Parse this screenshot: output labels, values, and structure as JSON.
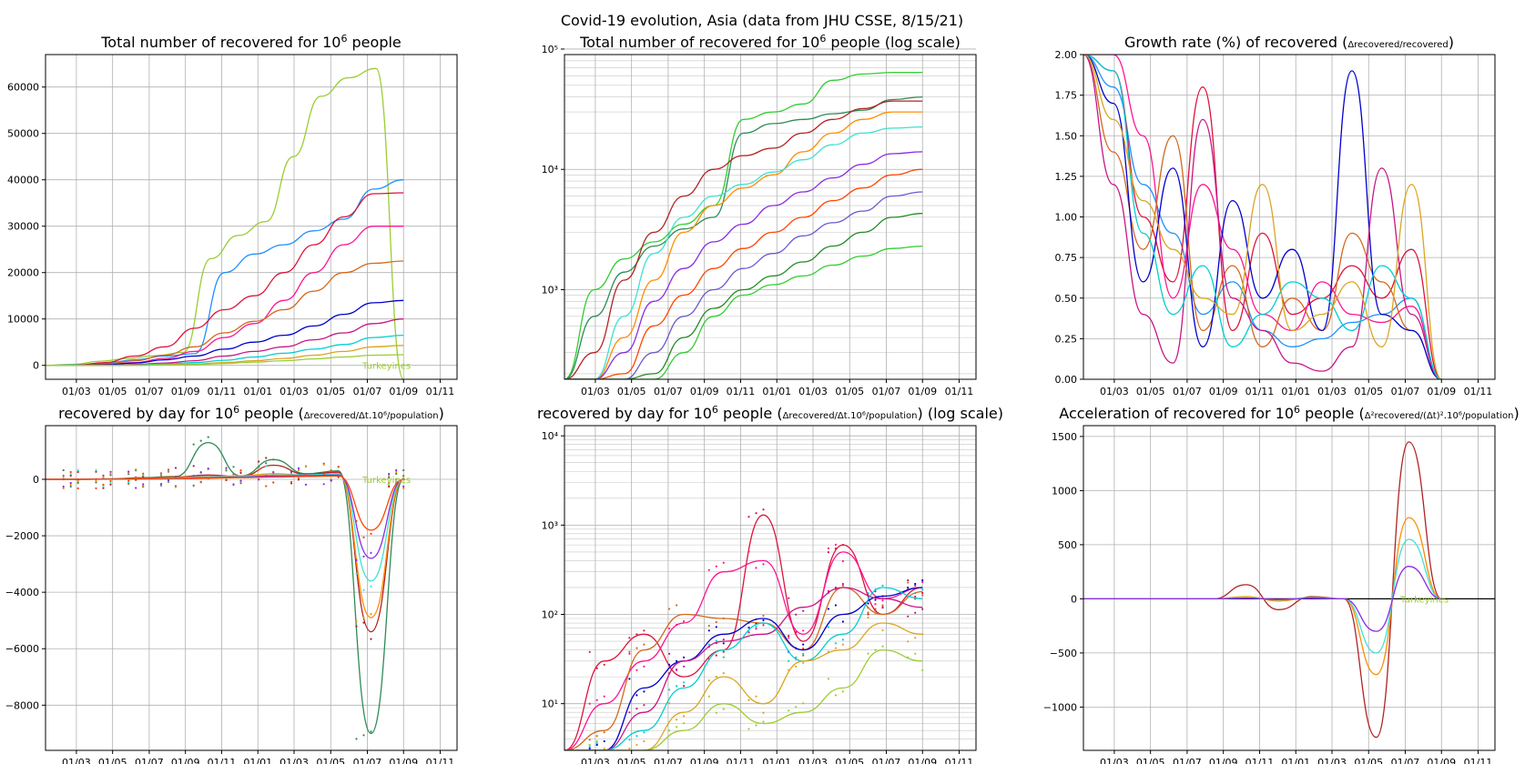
{
  "suptitle": "Covid-19 evolution, Asia (data from JHU CSSE, 8/15/21)",
  "colors": [
    "#9acd32",
    "#32cd32",
    "#1e90ff",
    "#2e8b57",
    "#dc143c",
    "#b22222",
    "#ff1493",
    "#ff8c00",
    "#d2691e",
    "#40e0d0",
    "#0000cd",
    "#8a2be2",
    "#c71585",
    "#ff4500",
    "#00ced1",
    "#6a5acd",
    "#daa520",
    "#228b22"
  ],
  "end_label": "Turkeyines",
  "chart_data": [
    {
      "type": "line",
      "id": "total",
      "title": "Total number of recovered for 10",
      "title_sup": "6",
      "title_after": " people",
      "yscale": "linear",
      "ylim": [
        -3000,
        67000
      ],
      "yticks": [
        0,
        10000,
        20000,
        30000,
        40000,
        50000,
        60000
      ],
      "ytick_labels": [
        "0",
        "10000",
        "20000",
        "30000",
        "40000",
        "50000",
        "60000"
      ],
      "xticks": [
        "01/03",
        "01/05",
        "01/07",
        "01/09",
        "01/11",
        "01/01",
        "01/03",
        "01/05",
        "01/07",
        "01/09",
        "01/11"
      ],
      "annotation": "Turkeyines",
      "series": [
        {
          "values": [
            0,
            200,
            900,
            1500,
            2100,
            2800,
            23000,
            28000,
            31000,
            45000,
            58000,
            62000,
            64000,
            -3000
          ]
        },
        {
          "values": [
            0,
            100,
            500,
            1200,
            2000,
            2500,
            20000,
            24000,
            26000,
            29000,
            31500,
            38000,
            40000
          ]
        },
        {
          "values": [
            0,
            0,
            600,
            2000,
            4000,
            8000,
            12000,
            15000,
            20000,
            26000,
            32000,
            37000,
            37200
          ]
        },
        {
          "values": [
            0,
            0,
            200,
            600,
            1500,
            3000,
            6000,
            9000,
            14000,
            20000,
            26000,
            30000,
            30000
          ]
        },
        {
          "values": [
            0,
            0,
            300,
            1000,
            2200,
            4000,
            7000,
            9500,
            12000,
            16000,
            20000,
            22000,
            22500
          ]
        },
        {
          "values": [
            0,
            0,
            100,
            500,
            1200,
            2000,
            3500,
            5000,
            6500,
            8500,
            11000,
            13500,
            14000
          ]
        },
        {
          "values": [
            0,
            0,
            0,
            200,
            500,
            1000,
            2000,
            3000,
            4000,
            5500,
            7000,
            9000,
            10000
          ]
        },
        {
          "values": [
            0,
            0,
            0,
            100,
            300,
            600,
            1100,
            1800,
            2600,
            3500,
            4500,
            6000,
            6500
          ]
        },
        {
          "values": [
            0,
            0,
            0,
            50,
            150,
            300,
            600,
            1000,
            1500,
            2200,
            3000,
            4000,
            4300
          ]
        },
        {
          "values": [
            0,
            0,
            0,
            0,
            100,
            200,
            400,
            700,
            1000,
            1400,
            1800,
            2200,
            2300
          ]
        }
      ]
    },
    {
      "type": "line",
      "id": "total-log",
      "title": "Total number of recovered for 10",
      "title_sup": "6",
      "title_after": " people (log scale)",
      "yscale": "log",
      "ylim": [
        180,
        90000
      ],
      "yticks": [
        1000,
        10000,
        100000
      ],
      "ytick_labels": [
        "10³",
        "10⁴",
        "10⁵"
      ],
      "xticks": [
        "01/03",
        "01/05",
        "01/07",
        "01/09",
        "01/11",
        "01/01",
        "01/03",
        "01/05",
        "01/07",
        "01/09",
        "01/11"
      ],
      "series": [
        {
          "values": [
            180,
            1000,
            1800,
            2500,
            3500,
            5000,
            26000,
            30000,
            35000,
            55000,
            62000,
            64000,
            64000
          ]
        },
        {
          "values": [
            180,
            600,
            1400,
            2300,
            3200,
            4000,
            20000,
            24000,
            26000,
            29000,
            31000,
            38000,
            40000
          ]
        },
        {
          "values": [
            180,
            300,
            1200,
            3000,
            6000,
            10000,
            13000,
            15000,
            20000,
            26000,
            32000,
            37000,
            37000
          ]
        },
        {
          "values": [
            180,
            180,
            400,
            1200,
            3000,
            5000,
            7000,
            9000,
            14000,
            20000,
            26000,
            30000,
            30000
          ]
        },
        {
          "values": [
            180,
            180,
            600,
            2000,
            4000,
            6000,
            7500,
            9500,
            12000,
            16000,
            20000,
            22000,
            22500
          ]
        },
        {
          "values": [
            180,
            180,
            300,
            800,
            1500,
            2500,
            3500,
            5000,
            6500,
            8500,
            11000,
            13500,
            14000
          ]
        },
        {
          "values": [
            180,
            180,
            200,
            500,
            900,
            1500,
            2200,
            3000,
            4000,
            5500,
            7000,
            9000,
            10000
          ]
        },
        {
          "values": [
            180,
            180,
            180,
            300,
            600,
            1000,
            1500,
            2000,
            2800,
            3600,
            4500,
            6000,
            6500
          ]
        },
        {
          "values": [
            180,
            180,
            180,
            200,
            400,
            700,
            1000,
            1300,
            1700,
            2300,
            3000,
            4000,
            4300
          ]
        },
        {
          "values": [
            180,
            180,
            180,
            180,
            300,
            600,
            900,
            1100,
            1300,
            1600,
            1900,
            2200,
            2300
          ]
        }
      ]
    },
    {
      "type": "line",
      "id": "growth",
      "title": "Growth rate (%) of recovered (",
      "title_frac_num": "Δrecovered",
      "title_frac_den": "recovered",
      "title_after": ")",
      "yscale": "linear",
      "ylim": [
        0,
        2
      ],
      "yticks": [
        0,
        0.25,
        0.5,
        0.75,
        1.0,
        1.25,
        1.5,
        1.75,
        2.0
      ],
      "ytick_labels": [
        "0.00",
        "0.25",
        "0.50",
        "0.75",
        "1.00",
        "1.25",
        "1.50",
        "1.75",
        "2.00"
      ],
      "xticks": [
        "01/03",
        "01/05",
        "01/07",
        "01/09",
        "01/11",
        "01/01",
        "01/03",
        "01/05",
        "01/07",
        "01/09",
        "01/11"
      ],
      "series": [
        {
          "values": [
            2,
            1.8,
            1.2,
            0.9,
            0.4,
            0.6,
            0.3,
            0.2,
            0.25,
            0.35,
            0.4,
            0.5,
            0
          ]
        },
        {
          "values": [
            2,
            1.9,
            1.0,
            0.6,
            1.8,
            0.3,
            0.9,
            0.4,
            0.5,
            0.7,
            0.5,
            0.8,
            0
          ]
        },
        {
          "values": [
            2,
            2,
            1.5,
            0.5,
            1.2,
            0.8,
            0.4,
            0.3,
            0.6,
            0.4,
            0.35,
            0.45,
            0
          ]
        },
        {
          "values": [
            2,
            1.4,
            0.8,
            1.5,
            0.3,
            0.7,
            0.2,
            0.5,
            0.3,
            0.9,
            0.6,
            0.3,
            0
          ]
        },
        {
          "values": [
            2,
            1.7,
            0.6,
            1.3,
            0.2,
            1.1,
            0.5,
            0.8,
            0.3,
            1.9,
            0.4,
            0.3,
            0
          ]
        },
        {
          "values": [
            2,
            1.2,
            0.4,
            0.1,
            1.6,
            0.5,
            0.3,
            0.1,
            0.05,
            0.2,
            1.3,
            0.4,
            0
          ]
        },
        {
          "values": [
            2,
            1.9,
            0.9,
            0.4,
            0.7,
            0.2,
            0.4,
            0.6,
            0.5,
            0.3,
            0.7,
            0.5,
            0
          ]
        },
        {
          "values": [
            2,
            1.6,
            1.1,
            0.8,
            0.5,
            0.4,
            1.2,
            0.3,
            0.4,
            0.6,
            0.2,
            1.2,
            0
          ]
        }
      ]
    },
    {
      "type": "line",
      "id": "daily",
      "title": "recovered by day  for 10",
      "title_sup": "6",
      "title_after": " people (",
      "title_frac1_num": "Δrecovered",
      "title_frac1_den": "Δt",
      "title_frac2_num": "10⁶",
      "title_frac2_den": "population",
      "title_end": ")",
      "yscale": "linear",
      "ylim": [
        -9600,
        1900
      ],
      "yticks": [
        -8000,
        -6000,
        -4000,
        -2000,
        0
      ],
      "ytick_labels": [
        "−8000",
        "−6000",
        "−4000",
        "−2000",
        "0"
      ],
      "xticks": [
        "01/03",
        "01/05",
        "01/07",
        "01/09",
        "01/11",
        "01/01",
        "01/03",
        "01/05",
        "01/07",
        "01/09",
        "01/11"
      ],
      "annotation": "Turkeyines",
      "series": [
        {
          "values": [
            0,
            0,
            20,
            60,
            100,
            1300,
            120,
            700,
            200,
            300,
            -9000,
            0
          ]
        },
        {
          "values": [
            0,
            0,
            10,
            40,
            80,
            150,
            100,
            500,
            180,
            250,
            -5400,
            0
          ]
        },
        {
          "values": [
            0,
            0,
            10,
            30,
            60,
            100,
            120,
            200,
            150,
            200,
            -4900,
            0
          ]
        },
        {
          "values": [
            0,
            0,
            5,
            20,
            40,
            80,
            100,
            150,
            160,
            180,
            -3600,
            0
          ]
        },
        {
          "values": [
            0,
            0,
            5,
            15,
            30,
            60,
            80,
            120,
            130,
            150,
            -2800,
            0
          ]
        },
        {
          "values": [
            0,
            0,
            2,
            10,
            20,
            40,
            60,
            80,
            100,
            120,
            -1800,
            0
          ]
        }
      ]
    },
    {
      "type": "line",
      "id": "daily-log",
      "title": "recovered by day  for 10",
      "title_sup": "6",
      "title_after": " people (",
      "title_frac1_num": "Δrecovered",
      "title_frac1_den": "Δt",
      "title_frac2_num": "10⁶",
      "title_frac2_den": "population",
      "title_end": ") (log scale)",
      "yscale": "log",
      "ylim": [
        3,
        13000
      ],
      "yticks": [
        10,
        100,
        1000,
        10000
      ],
      "ytick_labels": [
        "10¹",
        "10²",
        "10³",
        "10⁴"
      ],
      "xticks": [
        "01/03",
        "01/05",
        "01/07",
        "01/09",
        "01/11",
        "01/01",
        "01/03",
        "01/05",
        "01/07",
        "01/09",
        "01/11"
      ],
      "series": [
        {
          "values": [
            3,
            30,
            60,
            20,
            40,
            1300,
            50,
            600,
            100,
            200
          ]
        },
        {
          "values": [
            3,
            10,
            30,
            80,
            300,
            400,
            60,
            500,
            150,
            200
          ]
        },
        {
          "values": [
            3,
            5,
            40,
            100,
            90,
            80,
            40,
            200,
            100,
            180
          ]
        },
        {
          "values": [
            3,
            3,
            15,
            30,
            60,
            90,
            40,
            100,
            160,
            200
          ]
        },
        {
          "values": [
            3,
            3,
            8,
            30,
            50,
            60,
            120,
            200,
            150,
            120
          ]
        },
        {
          "values": [
            3,
            3,
            5,
            15,
            40,
            80,
            30,
            60,
            200,
            150
          ]
        },
        {
          "values": [
            3,
            3,
            3,
            8,
            20,
            10,
            30,
            40,
            80,
            60
          ]
        },
        {
          "values": [
            3,
            3,
            3,
            5,
            10,
            6,
            8,
            15,
            40,
            30
          ]
        }
      ]
    },
    {
      "type": "line",
      "id": "accel",
      "title": "Acceleration of recovered for 10",
      "title_sup": "6",
      "title_after": " people (",
      "title_frac1_num": "Δ²recovered",
      "title_frac1_den": "(Δt)²",
      "title_frac2_num": "10⁶",
      "title_frac2_den": "population",
      "title_end": ")",
      "yscale": "linear",
      "ylim": [
        -1400,
        1600
      ],
      "yticks": [
        -1000,
        -500,
        0,
        500,
        1000,
        1500
      ],
      "ytick_labels": [
        "−1000",
        "−500",
        "0",
        "500",
        "1000",
        "1500"
      ],
      "xticks": [
        "01/03",
        "01/05",
        "01/07",
        "01/09",
        "01/11",
        "01/01",
        "01/03",
        "01/05",
        "01/07",
        "01/09",
        "01/11"
      ],
      "annotation": "Turkeyines",
      "series": [
        {
          "values": [
            0,
            0,
            0,
            0,
            0,
            130,
            -100,
            20,
            0,
            -1280,
            1450,
            0
          ]
        },
        {
          "values": [
            0,
            0,
            0,
            0,
            0,
            20,
            -20,
            10,
            0,
            -700,
            750,
            0
          ]
        },
        {
          "values": [
            0,
            0,
            0,
            0,
            0,
            10,
            -10,
            10,
            0,
            -500,
            550,
            0
          ]
        },
        {
          "values": [
            0,
            0,
            0,
            0,
            0,
            5,
            -5,
            5,
            0,
            -300,
            300,
            0
          ]
        }
      ]
    }
  ]
}
